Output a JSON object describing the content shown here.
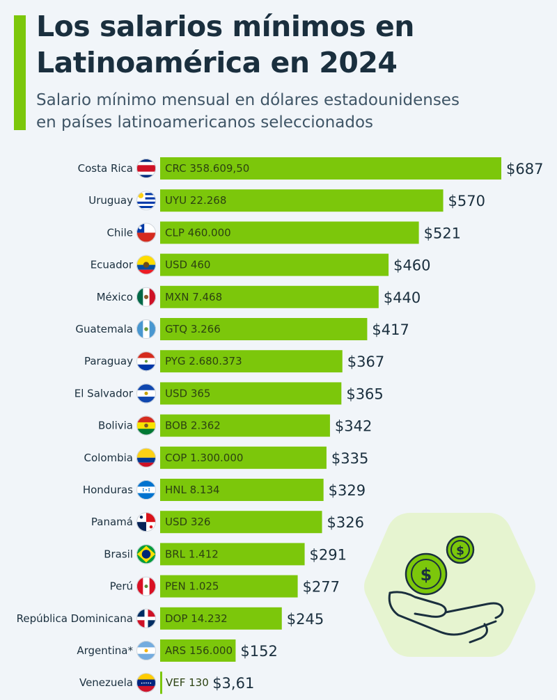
{
  "header": {
    "title_line1": "Los salarios mínimos en",
    "title_line2": "Latinoamérica en 2024",
    "subtitle_line1": "Salario mínimo mensual en dólares estadounidenses",
    "subtitle_line2": "en países latinoamericanos seleccionados"
  },
  "colors": {
    "bar": "#7cc70b",
    "accent": "#7cc70b",
    "text_dark": "#1a2f3e",
    "illustration_bg": "#e6f4d0"
  },
  "chart_data": {
    "type": "bar",
    "orientation": "horizontal",
    "title": "Los salarios mínimos en Latinoamérica en 2024",
    "subtitle": "Salario mínimo mensual en dólares estadounidenses en países latinoamericanos seleccionados",
    "xlabel": "",
    "ylabel": "",
    "xlim": [
      0,
      687
    ],
    "grid": false,
    "categories": [
      "Costa Rica",
      "Uruguay",
      "Chile",
      "Ecuador",
      "México",
      "Guatemala",
      "Paraguay",
      "El Salvador",
      "Bolivia",
      "Colombia",
      "Honduras",
      "Panamá",
      "Brasil",
      "Perú",
      "República Dominicana",
      "Argentina*",
      "Venezuela"
    ],
    "values": [
      687,
      570,
      521,
      460,
      440,
      417,
      367,
      365,
      342,
      335,
      329,
      326,
      291,
      277,
      245,
      152,
      3.61
    ],
    "value_labels": [
      "$687",
      "$570",
      "$521",
      "$460",
      "$440",
      "$417",
      "$367",
      "$365",
      "$342",
      "$335",
      "$329",
      "$326",
      "$291",
      "$277",
      "$245",
      "$152",
      "$3,61"
    ],
    "local_currency_labels": [
      "CRC 358.609,50",
      "UYU 22.268",
      "CLP 460.000",
      "USD 460",
      "MXN 7.468",
      "GTQ 3.266",
      "PYG 2.680.373",
      "USD 365",
      "BOB 2.362",
      "COP 1.300.000",
      "HNL 8.134",
      "USD 326",
      "BRL 1.412",
      "PEN 1.025",
      "DOP 14.232",
      "ARS 156.000",
      "VEF 130"
    ],
    "flags": [
      "costa-rica",
      "uruguay",
      "chile",
      "ecuador",
      "mexico",
      "guatemala",
      "paraguay",
      "el-salvador",
      "bolivia",
      "colombia",
      "honduras",
      "panama",
      "brasil",
      "peru",
      "republica-dominicana",
      "argentina",
      "venezuela"
    ]
  }
}
